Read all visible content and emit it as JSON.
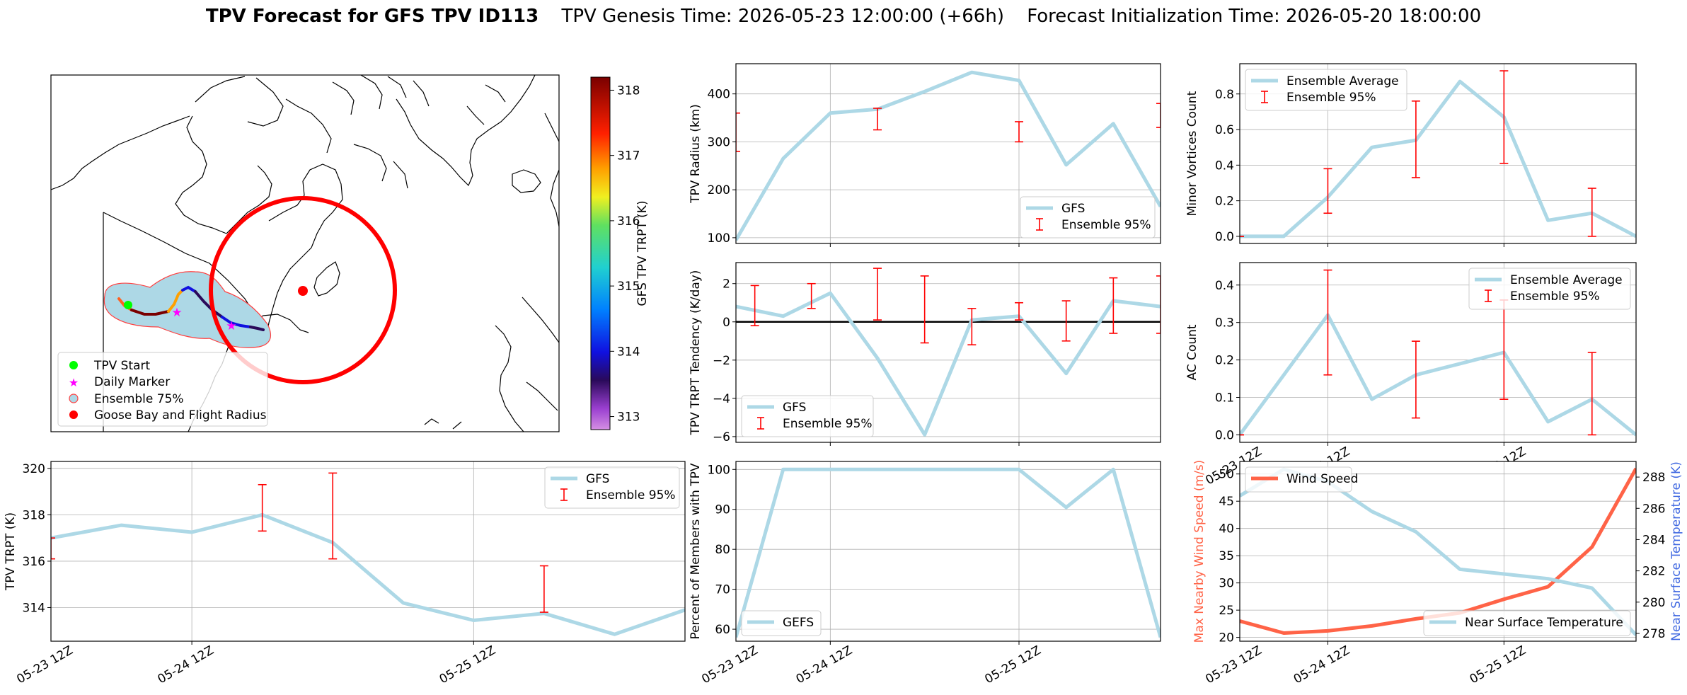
{
  "figure": {
    "title_bold": "TPV Forecast for GFS TPV ID113",
    "title_genesis": "TPV Genesis Time: 2026-05-23 12:00:00 (+66h)",
    "title_init": "Forecast Initialization Time: 2026-05-20 18:00:00"
  },
  "colors": {
    "light_blue": "#add8e6",
    "red": "#ff0000",
    "orange_red": "#ff6347",
    "royal_blue": "#4169e1",
    "green": "#00ff00",
    "magenta": "#ff00ff",
    "grid": "#b0b0b0"
  },
  "map": {
    "colorbar_label": "GFS TPV TRPT (K)",
    "colorbar_ticks": [
      "313",
      "314",
      "315",
      "316",
      "317",
      "318"
    ],
    "colorbar_range": [
      312.8,
      318.2
    ],
    "legend": [
      {
        "label": "TPV Start",
        "marker": "green-circle"
      },
      {
        "label": "Daily Marker",
        "marker": "magenta-star"
      },
      {
        "label": "Ensemble 75%",
        "marker": "lightblue-circle"
      },
      {
        "label": "Goose Bay and Flight Radius",
        "marker": "red-circle"
      }
    ]
  },
  "x_ticks": [
    "05-23 12Z",
    "05-24 12Z",
    "05-25 12Z"
  ],
  "chart_data": [
    {
      "id": "radius",
      "type": "line",
      "ylabel": "TPV Radius (km)",
      "x": [
        -0.5,
        -0.25,
        0,
        0.25,
        0.5,
        0.75,
        1,
        1.25,
        1.5,
        1.75,
        2,
        2.25
      ],
      "series": [
        {
          "name": "GFS",
          "values": [
            95,
            265,
            360,
            368,
            405,
            445,
            428,
            252,
            338,
            165,
            null,
            null
          ]
        }
      ],
      "errorbars": {
        "name": "Ensemble 95%",
        "x": [
          -0.5,
          0.25,
          1,
          1.75,
          2.25
        ],
        "low": [
          280,
          325,
          300,
          330,
          280
        ],
        "high": [
          360,
          370,
          342,
          380,
          368
        ]
      },
      "ylim": [
        88,
        463
      ],
      "yticks": [
        "100",
        "200",
        "300",
        "400"
      ],
      "legend": "lower right"
    },
    {
      "id": "tendency",
      "type": "line",
      "ylabel": "TPV TRPT Tendency (K/day)",
      "x": [
        -0.5,
        -0.25,
        0,
        0.25,
        0.5,
        0.75,
        1,
        1.25,
        1.5,
        1.75,
        2,
        2.25,
        2.5
      ],
      "series": [
        {
          "name": "GFS",
          "values": [
            0.8,
            0.3,
            1.5,
            -1.9,
            -5.9,
            0.1,
            0.3,
            -2.7,
            1.1,
            0.8,
            null,
            null,
            null
          ]
        }
      ],
      "errorbars": {
        "name": "Ensemble 95%",
        "x": [
          -0.4,
          -0.1,
          0.25,
          0.5,
          0.75,
          1.0,
          1.25,
          1.5,
          1.75,
          2.0,
          2.25
        ],
        "low": [
          -0.2,
          0.7,
          0.1,
          -1.1,
          -1.2,
          0.1,
          -1.0,
          -0.6,
          -0.6,
          -0.3,
          -0.5
        ],
        "high": [
          1.9,
          2.0,
          2.8,
          2.4,
          0.7,
          1.0,
          1.1,
          2.3,
          2.4,
          2.6,
          1.6
        ]
      },
      "zero_line": true,
      "ylim": [
        -6.3,
        3.1
      ],
      "yticks": [
        "-6",
        "-4",
        "-2",
        "0",
        "2"
      ],
      "legend": "lower left"
    },
    {
      "id": "members",
      "type": "line",
      "ylabel": "Percent of Members with TPV",
      "x": [
        -0.5,
        -0.25,
        0,
        0.25,
        0.5,
        0.75,
        1,
        1.25,
        1.5,
        1.75
      ],
      "series": [
        {
          "name": "GEFS",
          "values": [
            58,
            100,
            100,
            100,
            100,
            100,
            100,
            90.5,
            100,
            58
          ]
        }
      ],
      "ylim": [
        57,
        102
      ],
      "yticks": [
        "60",
        "70",
        "80",
        "90",
        "100"
      ],
      "legend": "lower left"
    },
    {
      "id": "trpt",
      "type": "line",
      "ylabel": "TPV TRPT (K)",
      "x": [
        -0.5,
        -0.25,
        0,
        0.25,
        0.5,
        0.75,
        1,
        1.25,
        1.5,
        1.75,
        2,
        2.25,
        2.5
      ],
      "series": [
        {
          "name": "GFS",
          "values": [
            317,
            317.55,
            317.25,
            318,
            316.8,
            314.2,
            313.45,
            313.75,
            312.85,
            313.9,
            null,
            null,
            null
          ]
        }
      ],
      "errorbars": {
        "name": "Ensemble 95%",
        "x": [
          -0.5,
          0.25,
          0.5,
          1.25,
          2.0
        ],
        "low": [
          316.1,
          317.3,
          316.1,
          313.8,
          314.4
        ],
        "high": [
          317.0,
          319.3,
          319.8,
          315.8,
          318.1
        ]
      },
      "ylim": [
        312.55,
        320.3
      ],
      "yticks": [
        "314",
        "316",
        "318",
        "320"
      ],
      "legend": "upper right"
    },
    {
      "id": "minor",
      "type": "line",
      "ylabel": "Minor Vortices Count",
      "x": [
        -0.5,
        -0.25,
        0,
        0.25,
        0.5,
        0.75,
        1,
        1.25,
        1.5,
        1.75
      ],
      "series": [
        {
          "name": "Ensemble Average",
          "values": [
            0,
            0,
            0.22,
            0.5,
            0.54,
            0.87,
            0.67,
            0.09,
            0.13,
            0
          ]
        }
      ],
      "errorbars": {
        "name": "Ensemble 95%",
        "x": [
          -0.5,
          0.0,
          0.5,
          1.0,
          1.5
        ],
        "low": [
          0,
          0.13,
          0.33,
          0.41,
          0
        ],
        "high": [
          0,
          0.38,
          0.76,
          0.93,
          0.27
        ]
      },
      "ylim": [
        -0.04,
        0.97
      ],
      "yticks": [
        "0.0",
        "0.2",
        "0.4",
        "0.6",
        "0.8"
      ],
      "legend": "upper left"
    },
    {
      "id": "ac",
      "type": "line",
      "ylabel": "AC Count",
      "x": [
        -0.5,
        -0.25,
        0,
        0.25,
        0.5,
        0.75,
        1,
        1.25,
        1.5,
        1.75
      ],
      "series": [
        {
          "name": "Ensemble Average",
          "values": [
            0,
            0.16,
            0.32,
            0.095,
            0.16,
            0.19,
            0.22,
            0.035,
            0.095,
            0
          ]
        }
      ],
      "errorbars": {
        "name": "Ensemble 95%",
        "x": [
          -0.5,
          0.0,
          0.5,
          1.0,
          1.5
        ],
        "low": [
          0,
          0.16,
          0.045,
          0.095,
          0
        ],
        "high": [
          0,
          0.44,
          0.25,
          0.36,
          0.22
        ]
      },
      "ylim": [
        -0.02,
        0.46
      ],
      "yticks": [
        "0.0",
        "0.1",
        "0.2",
        "0.3",
        "0.4"
      ],
      "legend": "upper right"
    },
    {
      "id": "wind",
      "type": "line",
      "ylabel": "Max Nearby Wind Speed (m/s)",
      "ylabel_right": "Near Surface Temperature (K)",
      "x": [
        -0.5,
        -0.25,
        0,
        0.25,
        0.5,
        0.75,
        1,
        1.25,
        1.5,
        1.75
      ],
      "series": [
        {
          "name": "Wind Speed",
          "axis": "left",
          "values": [
            23,
            20.8,
            21.2,
            22.1,
            23.4,
            24.5,
            27,
            29.3,
            36.6,
            51
          ]
        },
        {
          "name": "Near Surface Temperature",
          "axis": "right",
          "values": [
            286.8,
            288.5,
            287.7,
            285.8,
            284.5,
            282.1,
            281.8,
            281.5,
            280.9,
            277.9
          ]
        }
      ],
      "ylim": [
        19.3,
        52.3
      ],
      "ylim_right": [
        277.5,
        289.0
      ],
      "yticks": [
        "20",
        "25",
        "30",
        "35",
        "40",
        "45",
        "50"
      ],
      "yticks_right": [
        "278",
        "280",
        "282",
        "284",
        "286",
        "288"
      ],
      "legend_left": "upper left",
      "legend_right": "lower right"
    }
  ],
  "labels": {
    "gfs": "GFS",
    "gefs": "GEFS",
    "ens95": "Ensemble 95%",
    "ens_avg": "Ensemble Average",
    "wind": "Wind Speed",
    "temp": "Near Surface Temperature"
  }
}
